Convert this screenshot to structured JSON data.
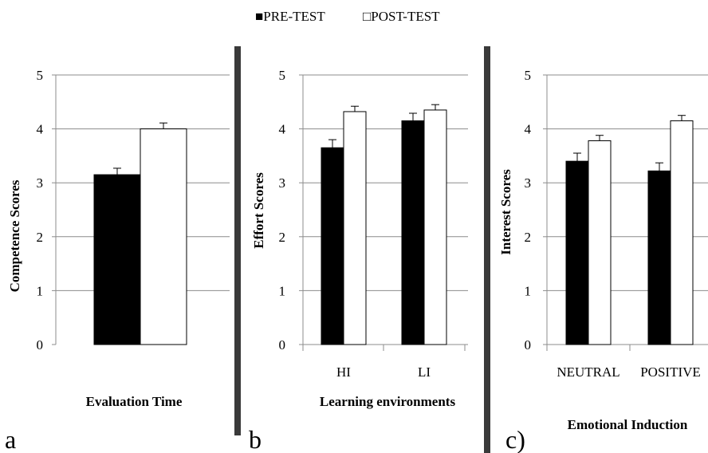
{
  "legend": [
    {
      "marker": "■",
      "label": "PRE-TEST",
      "color": "#000000"
    },
    {
      "marker": "□",
      "label": "POST-TEST",
      "color": "#ffffff"
    }
  ],
  "colors": {
    "pre": "#000000",
    "post": "#ffffff",
    "divider": "#3a3a3a",
    "grid": "#8c8c8c"
  },
  "chart_data": [
    {
      "type": "bar",
      "panel": "a",
      "xlabel": "Evaluation Time",
      "ylabel": "Competence Scores",
      "ylim": [
        0,
        5
      ],
      "yticks": [
        "0",
        "1",
        "2",
        "3",
        "4",
        "5"
      ],
      "categories": [
        ""
      ],
      "series": [
        {
          "name": "PRE-TEST",
          "values": [
            3.15
          ],
          "errors": [
            0.12
          ]
        },
        {
          "name": "POST-TEST",
          "values": [
            4.0
          ],
          "errors": [
            0.11
          ]
        }
      ],
      "grid": true
    },
    {
      "type": "bar",
      "panel": "b",
      "xlabel": "Learning environments",
      "ylabel": "Effort Scores",
      "ylim": [
        0,
        5
      ],
      "yticks": [
        "0",
        "1",
        "2",
        "3",
        "4",
        "5"
      ],
      "categories": [
        "HI",
        "LI"
      ],
      "series": [
        {
          "name": "PRE-TEST",
          "values": [
            3.65,
            4.15
          ],
          "errors": [
            0.15,
            0.14
          ]
        },
        {
          "name": "POST-TEST",
          "values": [
            4.32,
            4.35
          ],
          "errors": [
            0.1,
            0.1
          ]
        }
      ],
      "grid": true
    },
    {
      "type": "bar",
      "panel": "c)",
      "xlabel": "Emotional Induction",
      "ylabel": "Interest Scores",
      "ylim": [
        0,
        5
      ],
      "yticks": [
        "0",
        "1",
        "2",
        "3",
        "4",
        "5"
      ],
      "categories": [
        "NEUTRAL",
        "POSITIVE"
      ],
      "series": [
        {
          "name": "PRE-TEST",
          "values": [
            3.4,
            3.22
          ],
          "errors": [
            0.15,
            0.15
          ]
        },
        {
          "name": "POST-TEST",
          "values": [
            3.78,
            4.15
          ],
          "errors": [
            0.1,
            0.1
          ]
        }
      ],
      "grid": true
    }
  ]
}
